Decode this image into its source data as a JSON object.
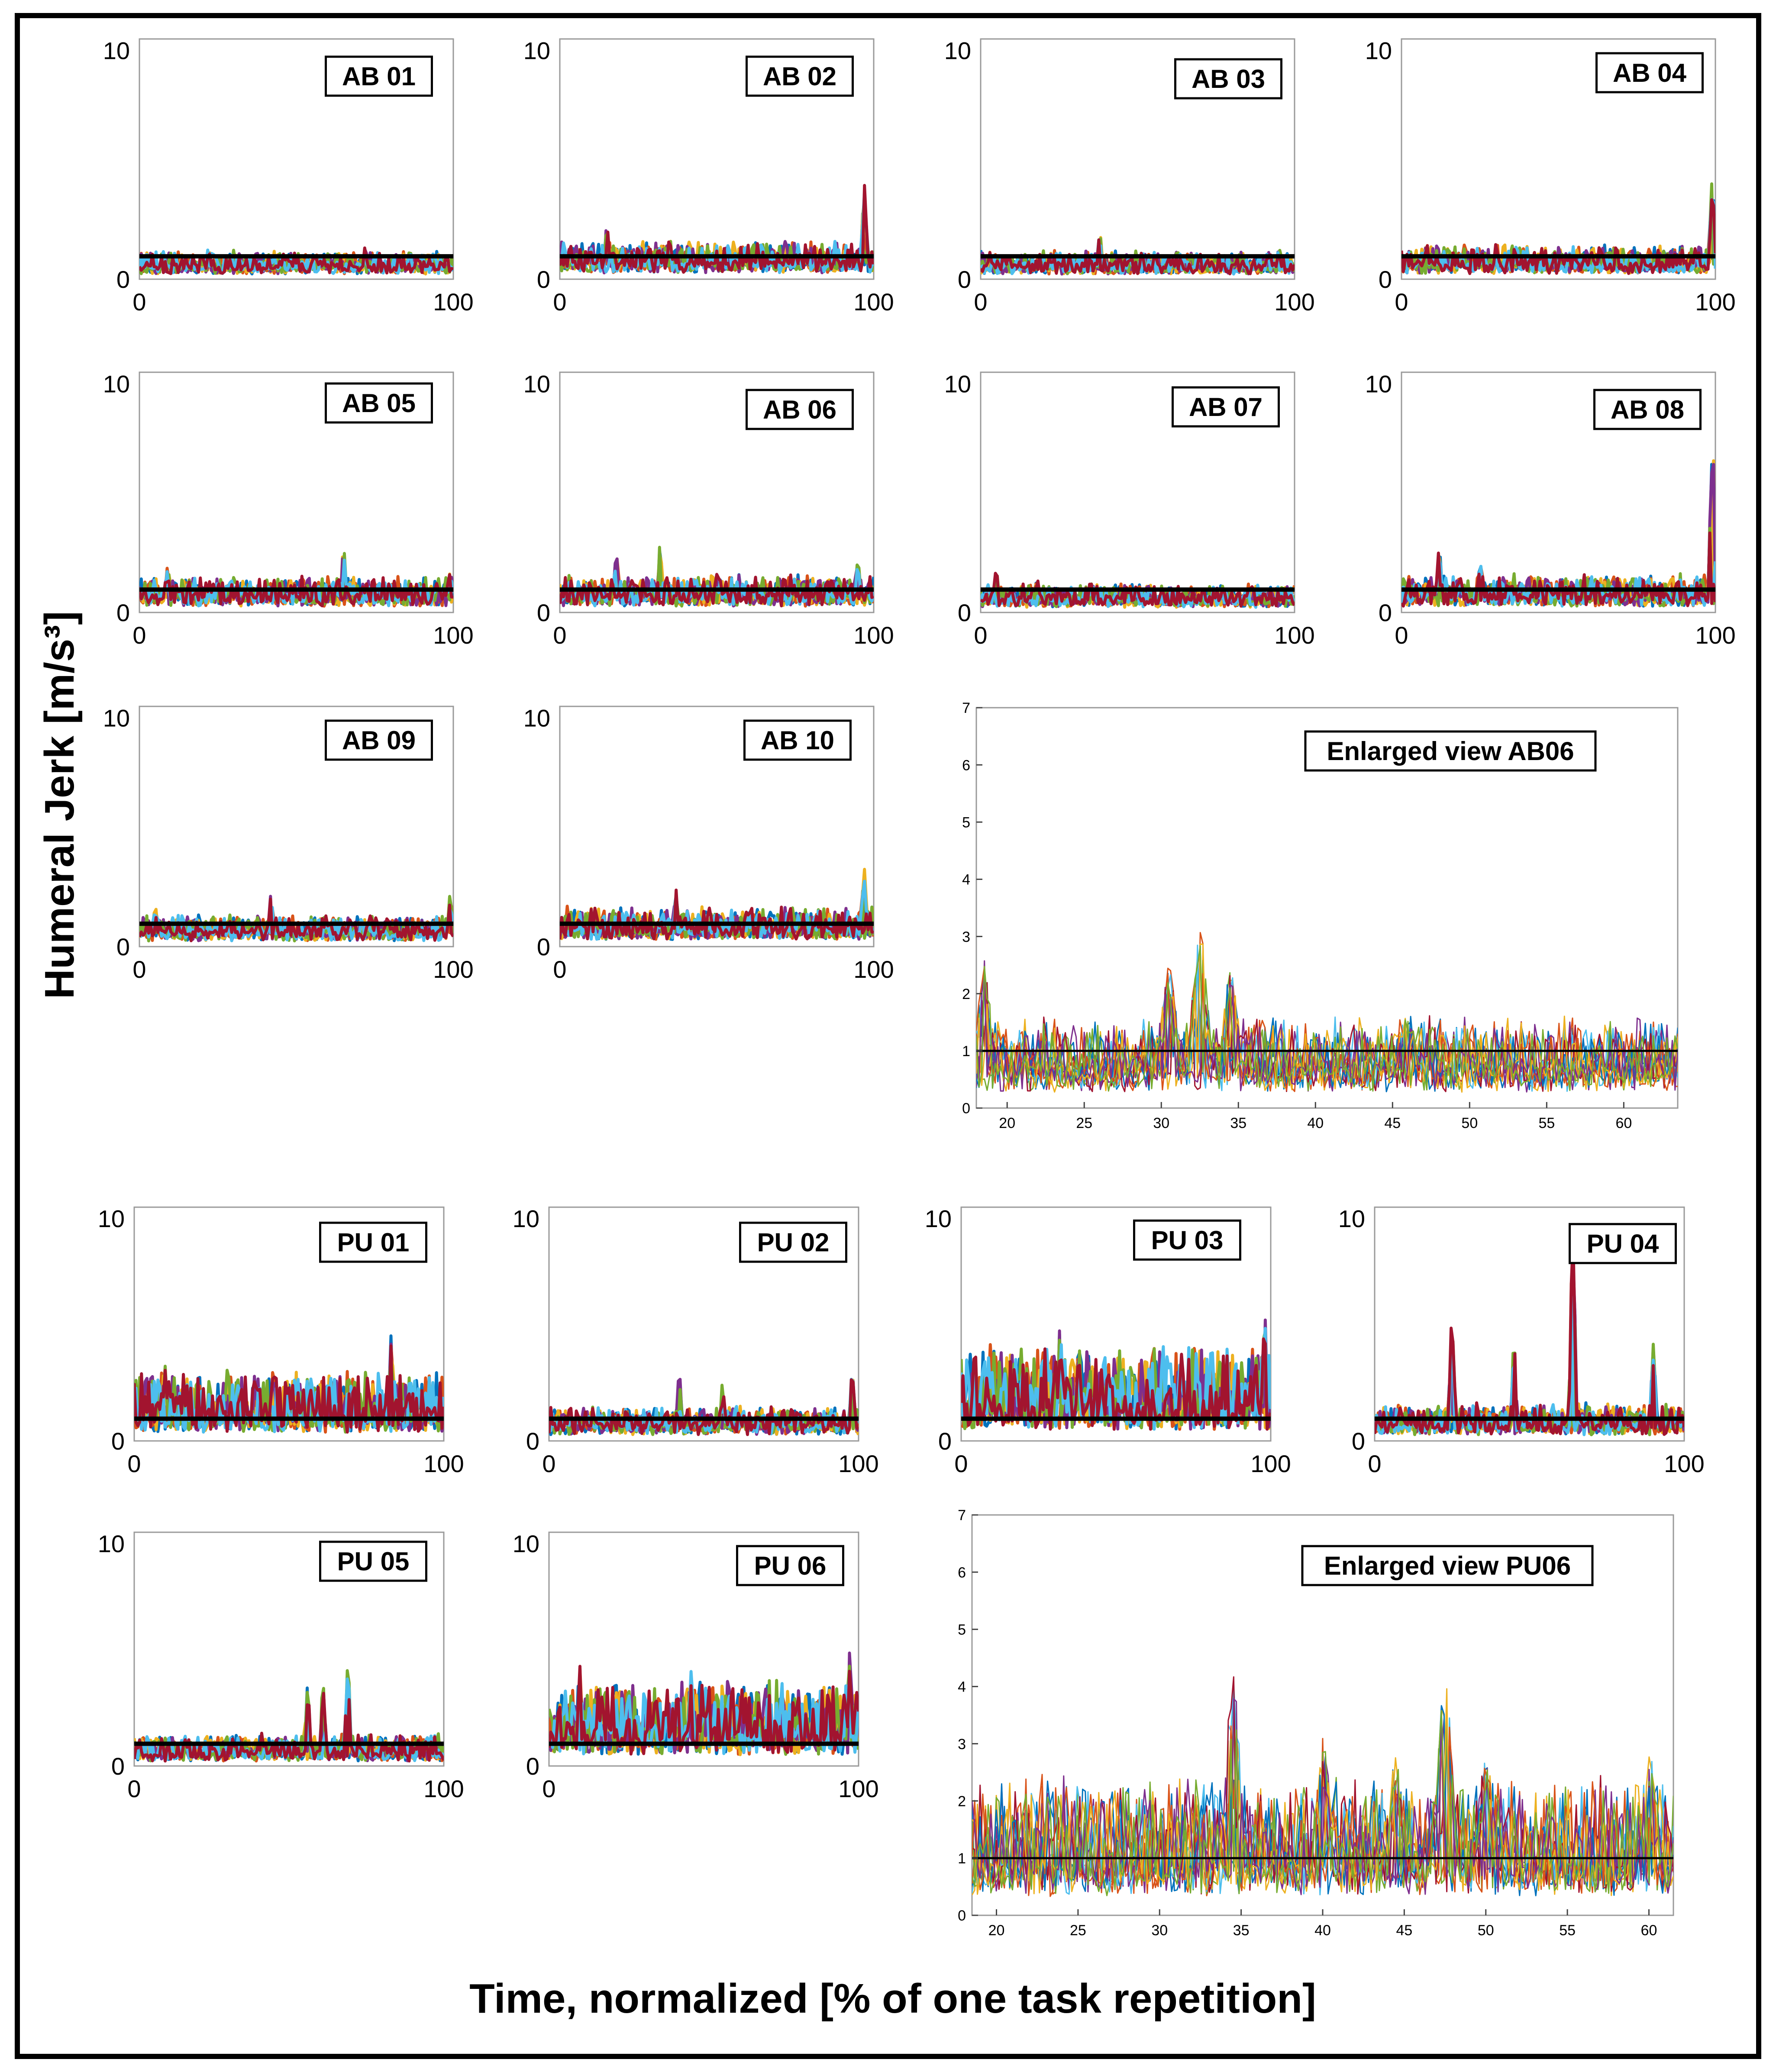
{
  "figure": {
    "ylabel": "Humeral Jerk [m/s³]",
    "xlabel": "Time, normalized [% of one task repetition]"
  },
  "series_colors": [
    "#0072BD",
    "#D95319",
    "#EDB120",
    "#7E2F8E",
    "#77AC30",
    "#4DBEEE",
    "#A2142F"
  ],
  "threshold_color": "#000000",
  "chart_data": [
    {
      "id": "AB 01",
      "type": "line",
      "label": "AB 01",
      "xlim": [
        0,
        100
      ],
      "ylim": [
        0,
        10.5
      ],
      "xticks": [
        0,
        100
      ],
      "yticks": [
        0,
        10
      ],
      "threshold": 1,
      "base": 0.4,
      "noise": 0.35,
      "peaks": [
        {
          "x": 22,
          "y": 1.4
        },
        {
          "x": 72,
          "y": 1.5
        }
      ]
    },
    {
      "id": "AB 02",
      "type": "line",
      "label": "AB 02",
      "xlim": [
        0,
        100
      ],
      "ylim": [
        0,
        10.5
      ],
      "xticks": [
        0,
        100
      ],
      "yticks": [
        0,
        10
      ],
      "threshold": 1,
      "base": 0.5,
      "noise": 0.5,
      "peaks": [
        {
          "x": 15,
          "y": 2.4
        },
        {
          "x": 35,
          "y": 1.9
        },
        {
          "x": 97,
          "y": 4.2
        }
      ]
    },
    {
      "id": "AB 03",
      "type": "line",
      "label": "AB 03",
      "xlim": [
        0,
        100
      ],
      "ylim": [
        0,
        10.5
      ],
      "xticks": [
        0,
        100
      ],
      "yticks": [
        0,
        10
      ],
      "threshold": 1,
      "base": 0.4,
      "noise": 0.35,
      "peaks": [
        {
          "x": 38,
          "y": 2.0
        },
        {
          "x": 95,
          "y": 1.4
        }
      ]
    },
    {
      "id": "AB 04",
      "type": "line",
      "label": "AB 04",
      "xlim": [
        0,
        100
      ],
      "ylim": [
        0,
        10.5
      ],
      "xticks": [
        0,
        100
      ],
      "yticks": [
        0,
        10
      ],
      "threshold": 1,
      "base": 0.45,
      "noise": 0.45,
      "peaks": [
        {
          "x": 8,
          "y": 1.7
        },
        {
          "x": 40,
          "y": 1.5
        },
        {
          "x": 99,
          "y": 4.7
        }
      ]
    },
    {
      "id": "AB 05",
      "type": "line",
      "label": "AB 05",
      "xlim": [
        0,
        100
      ],
      "ylim": [
        0,
        10.5
      ],
      "xticks": [
        0,
        100
      ],
      "yticks": [
        0,
        10
      ],
      "threshold": 1,
      "base": 0.5,
      "noise": 0.45,
      "peaks": [
        {
          "x": 9,
          "y": 2.1
        },
        {
          "x": 65,
          "y": 3.1
        },
        {
          "x": 99,
          "y": 2.1
        }
      ]
    },
    {
      "id": "AB 06",
      "type": "line",
      "label": "AB 06",
      "xlim": [
        0,
        100
      ],
      "ylim": [
        0,
        10.5
      ],
      "xticks": [
        0,
        100
      ],
      "yticks": [
        0,
        10
      ],
      "threshold": 1,
      "base": 0.5,
      "noise": 0.5,
      "peaks": [
        {
          "x": 18,
          "y": 2.5
        },
        {
          "x": 32,
          "y": 3.1
        },
        {
          "x": 95,
          "y": 2.3
        }
      ]
    },
    {
      "id": "AB 07",
      "type": "line",
      "label": "AB 07",
      "xlim": [
        0,
        100
      ],
      "ylim": [
        0,
        10.5
      ],
      "xticks": [
        0,
        100
      ],
      "yticks": [
        0,
        10
      ],
      "threshold": 1,
      "base": 0.4,
      "noise": 0.35,
      "peaks": [
        {
          "x": 5,
          "y": 1.9
        },
        {
          "x": 18,
          "y": 1.5
        },
        {
          "x": 35,
          "y": 1.4
        }
      ]
    },
    {
      "id": "AB 08",
      "type": "line",
      "label": "AB 08",
      "xlim": [
        0,
        100
      ],
      "ylim": [
        0,
        10.5
      ],
      "xticks": [
        0,
        100
      ],
      "yticks": [
        0,
        10
      ],
      "threshold": 1,
      "base": 0.5,
      "noise": 0.5,
      "peaks": [
        {
          "x": 12,
          "y": 2.8
        },
        {
          "x": 25,
          "y": 2.3
        },
        {
          "x": 99,
          "y": 8.1
        }
      ]
    },
    {
      "id": "AB 09",
      "type": "line",
      "label": "AB 09",
      "xlim": [
        0,
        100
      ],
      "ylim": [
        0,
        10.5
      ],
      "xticks": [
        0,
        100
      ],
      "yticks": [
        0,
        10
      ],
      "threshold": 1,
      "base": 0.45,
      "noise": 0.4,
      "peaks": [
        {
          "x": 5,
          "y": 1.8
        },
        {
          "x": 42,
          "y": 2.5
        },
        {
          "x": 99,
          "y": 2.3
        }
      ]
    },
    {
      "id": "AB 10",
      "type": "line",
      "label": "AB 10",
      "xlim": [
        0,
        100
      ],
      "ylim": [
        0,
        10.5
      ],
      "xticks": [
        0,
        100
      ],
      "yticks": [
        0,
        10
      ],
      "threshold": 1,
      "base": 0.55,
      "noise": 0.5,
      "peaks": [
        {
          "x": 10,
          "y": 1.7
        },
        {
          "x": 37,
          "y": 2.5
        },
        {
          "x": 97,
          "y": 3.4
        }
      ]
    },
    {
      "id": "PU 01",
      "type": "line",
      "label": "PU 01",
      "xlim": [
        0,
        100
      ],
      "ylim": [
        0,
        10.5
      ],
      "xticks": [
        0,
        100
      ],
      "yticks": [
        0,
        10
      ],
      "threshold": 1,
      "base": 0.7,
      "noise": 1.1,
      "peaks": [
        {
          "x": 10,
          "y": 3.4
        },
        {
          "x": 45,
          "y": 3.5
        },
        {
          "x": 83,
          "y": 4.8
        }
      ]
    },
    {
      "id": "PU 02",
      "type": "line",
      "label": "PU 02",
      "xlim": [
        0,
        100
      ],
      "ylim": [
        0,
        10.5
      ],
      "xticks": [
        0,
        100
      ],
      "yticks": [
        0,
        10
      ],
      "threshold": 1,
      "base": 0.5,
      "noise": 0.45,
      "peaks": [
        {
          "x": 42,
          "y": 3.3
        },
        {
          "x": 56,
          "y": 2.6
        },
        {
          "x": 98,
          "y": 3.2
        }
      ]
    },
    {
      "id": "PU 03",
      "type": "line",
      "label": "PU 03",
      "xlim": [
        0,
        100
      ],
      "ylim": [
        0,
        10.5
      ],
      "xticks": [
        0,
        100
      ],
      "yticks": [
        0,
        10
      ],
      "threshold": 1,
      "base": 0.9,
      "noise": 1.6,
      "peaks": [
        {
          "x": 32,
          "y": 5.3
        },
        {
          "x": 38,
          "y": 4.6
        },
        {
          "x": 98,
          "y": 5.8
        }
      ]
    },
    {
      "id": "PU 04",
      "type": "line",
      "label": "PU 04",
      "xlim": [
        0,
        100
      ],
      "ylim": [
        0,
        10.5
      ],
      "xticks": [
        0,
        100
      ],
      "yticks": [
        0,
        10
      ],
      "threshold": 1,
      "base": 0.5,
      "noise": 0.5,
      "peaks": [
        {
          "x": 25,
          "y": 6.2
        },
        {
          "x": 45,
          "y": 4.6
        },
        {
          "x": 64,
          "y": 10.5
        },
        {
          "x": 90,
          "y": 4.5
        }
      ]
    },
    {
      "id": "PU 05",
      "type": "line",
      "label": "PU 05",
      "xlim": [
        0,
        100
      ],
      "ylim": [
        0,
        10.5
      ],
      "xticks": [
        0,
        100
      ],
      "yticks": [
        0,
        10
      ],
      "threshold": 1,
      "base": 0.4,
      "noise": 0.45,
      "peaks": [
        {
          "x": 56,
          "y": 3.6
        },
        {
          "x": 61,
          "y": 3.7
        },
        {
          "x": 69,
          "y": 4.6
        }
      ]
    },
    {
      "id": "PU 06",
      "type": "line",
      "label": "PU 06",
      "xlim": [
        0,
        100
      ],
      "ylim": [
        0,
        10.5
      ],
      "xticks": [
        0,
        100
      ],
      "yticks": [
        0,
        10
      ],
      "threshold": 1,
      "base": 0.9,
      "noise": 1.3,
      "peaks": [
        {
          "x": 10,
          "y": 4.5
        },
        {
          "x": 46,
          "y": 4.4
        },
        {
          "x": 97,
          "y": 5.3
        }
      ]
    },
    {
      "id": "Enlarged AB06",
      "type": "line",
      "label": "Enlarged view AB06",
      "xlim": [
        18,
        63.5
      ],
      "ylim": [
        0,
        7
      ],
      "xticks": [
        20,
        25,
        30,
        35,
        40,
        45,
        50,
        55,
        60
      ],
      "yticks": [
        0,
        1,
        2,
        3,
        4,
        5,
        6,
        7
      ],
      "threshold": 1,
      "base": 0.5,
      "noise": 0.45,
      "peaks": [
        {
          "x": 18.5,
          "y": 2.6
        },
        {
          "x": 30.5,
          "y": 2.5
        },
        {
          "x": 32.5,
          "y": 3.1
        },
        {
          "x": 34.5,
          "y": 2.4
        },
        {
          "x": 46,
          "y": 1.7
        }
      ]
    },
    {
      "id": "Enlarged PU06",
      "type": "line",
      "label": "Enlarged view PU06",
      "xlim": [
        18.5,
        61.5
      ],
      "ylim": [
        0,
        7
      ],
      "xticks": [
        20,
        25,
        30,
        35,
        40,
        45,
        50,
        55,
        60
      ],
      "yticks": [
        0,
        1,
        2,
        3,
        4,
        5,
        6,
        7
      ],
      "threshold": 1,
      "base": 0.6,
      "noise": 0.8,
      "peaks": [
        {
          "x": 34.5,
          "y": 4.2
        },
        {
          "x": 40,
          "y": 3.1
        },
        {
          "x": 44.5,
          "y": 2.8
        },
        {
          "x": 47.5,
          "y": 4.1
        },
        {
          "x": 50,
          "y": 2.9
        },
        {
          "x": 60,
          "y": 2.9
        }
      ]
    }
  ]
}
